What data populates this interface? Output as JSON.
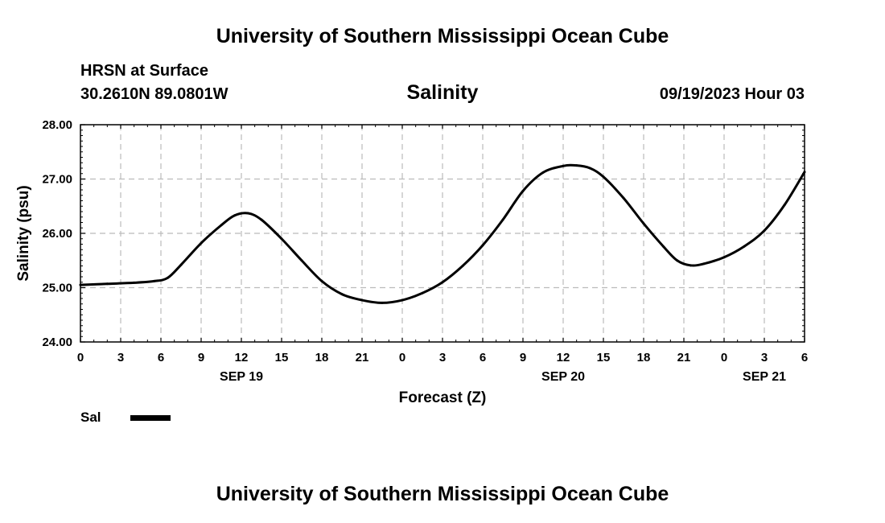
{
  "page": {
    "title": "University of Southern Mississippi Ocean Cube",
    "footer_title": "University of Southern Mississippi Ocean Cube"
  },
  "station": {
    "name": "HRSN at Surface",
    "coords": "30.2610N  89.0801W"
  },
  "plot": {
    "variable_title": "Salinity",
    "datetime": "09/19/2023 Hour 03"
  },
  "legend": {
    "label": "Sal",
    "color": "#000000"
  },
  "colors": {
    "line": "#000000",
    "grid": "#bbbbbb",
    "background": "#ffffff"
  },
  "chart_data": {
    "type": "line",
    "title": "Salinity",
    "xlabel": "Forecast (Z)",
    "ylabel": "Salinity (psu)",
    "xlim": [
      0,
      54
    ],
    "ylim": [
      24,
      28
    ],
    "y_ticks": [
      "24.00",
      "25.00",
      "26.00",
      "27.00",
      "28.00"
    ],
    "y_tick_values": [
      24,
      25,
      26,
      27,
      28
    ],
    "x_ticks": [
      "0",
      "3",
      "6",
      "9",
      "12",
      "15",
      "18",
      "21",
      "0",
      "3",
      "6",
      "9",
      "12",
      "15",
      "18",
      "21",
      "0",
      "3",
      "6"
    ],
    "x_tick_hours": [
      0,
      3,
      6,
      9,
      12,
      15,
      18,
      21,
      24,
      27,
      30,
      33,
      36,
      39,
      42,
      45,
      48,
      51,
      54
    ],
    "date_labels": [
      {
        "text": "SEP 19",
        "hour": 12
      },
      {
        "text": "SEP 20",
        "hour": 36
      },
      {
        "text": "SEP 21",
        "hour": 51
      }
    ],
    "grid": true,
    "series": [
      {
        "name": "Sal",
        "hours": [
          0,
          2,
          4,
          5.5,
          6.5,
          7.5,
          9,
          10.5,
          11.5,
          12.5,
          13.5,
          15,
          16.5,
          18,
          19.5,
          21,
          22.5,
          24,
          25.5,
          27,
          28.5,
          30,
          31.5,
          33,
          34.5,
          36,
          37,
          38,
          39,
          40.5,
          42,
          43.5,
          44.5,
          45.5,
          46.5,
          48,
          49.5,
          51,
          52.5,
          54
        ],
        "values": [
          25.05,
          25.07,
          25.09,
          25.12,
          25.18,
          25.42,
          25.82,
          26.15,
          26.33,
          26.37,
          26.25,
          25.9,
          25.5,
          25.12,
          24.88,
          24.77,
          24.72,
          24.77,
          24.9,
          25.1,
          25.4,
          25.78,
          26.25,
          26.78,
          27.12,
          27.24,
          27.25,
          27.2,
          27.04,
          26.65,
          26.18,
          25.75,
          25.5,
          25.41,
          25.44,
          25.56,
          25.76,
          26.05,
          26.52,
          27.13
        ]
      }
    ]
  }
}
